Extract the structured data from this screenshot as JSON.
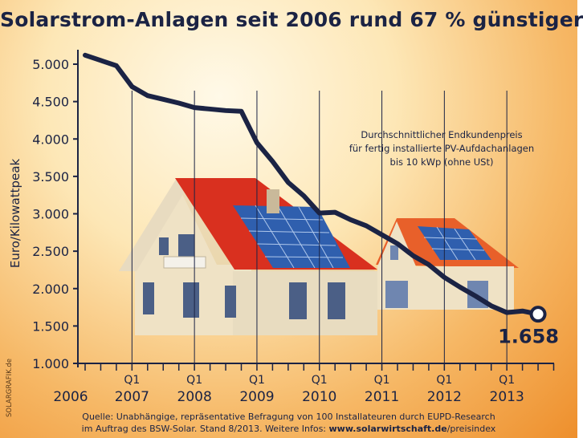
{
  "chart_data": {
    "type": "line",
    "title": "Solarstrom-Anlagen seit 2006 rund 67 % günstiger",
    "ylabel": "Euro/Kilowattpeak",
    "xlabel": "",
    "ylim": [
      1000,
      5000
    ],
    "y_ticks": [
      "5.000",
      "4.500",
      "4.000",
      "3.500",
      "3.000",
      "2.500",
      "2.000",
      "1.500",
      "1.000"
    ],
    "y_tick_values": [
      5000,
      4500,
      4000,
      3500,
      3000,
      2500,
      2000,
      1500,
      1000
    ],
    "x_labels": [
      {
        "q": "",
        "year": "2006"
      },
      {
        "q": "Q1",
        "year": "2007"
      },
      {
        "q": "Q1",
        "year": "2008"
      },
      {
        "q": "Q1",
        "year": "2009"
      },
      {
        "q": "Q1",
        "year": "2010"
      },
      {
        "q": "Q1",
        "year": "2011"
      },
      {
        "q": "Q1",
        "year": "2012"
      },
      {
        "q": "Q1",
        "year": "2013"
      }
    ],
    "series": [
      {
        "x": [
          "2006-Q2",
          "2006-Q3",
          "2006-Q4",
          "2007-Q1",
          "2007-Q2",
          "2007-Q3",
          "2007-Q4",
          "2008-Q1",
          "2008-Q2",
          "2008-Q3",
          "2008-Q4",
          "2009-Q1",
          "2009-Q2",
          "2009-Q3",
          "2009-Q4",
          "2010-Q1",
          "2010-Q2",
          "2010-Q3",
          "2010-Q4",
          "2011-Q1",
          "2011-Q2",
          "2011-Q3",
          "2011-Q4",
          "2012-Q1",
          "2012-Q2",
          "2012-Q3",
          "2012-Q4",
          "2013-Q1",
          "2013-Q2",
          "2013-Q3"
        ],
        "values": [
          5120,
          5050,
          4980,
          4700,
          4580,
          4530,
          4480,
          4420,
          4400,
          4380,
          4370,
          3950,
          3700,
          3420,
          3240,
          3010,
          3020,
          2920,
          2840,
          2720,
          2600,
          2440,
          2320,
          2150,
          2020,
          1900,
          1770,
          1680,
          1700,
          1658
        ]
      }
    ],
    "end_value_label": "1.658",
    "annotation": [
      "Durchschnittlicher Endkundenpreis",
      "für fertig installierte  PV-Aufdachanlagen",
      "bis 10 kWp (ohne USt)"
    ],
    "colors": {
      "line": "#1b2344",
      "background_center": "#fff9e8",
      "background_edge": "#ee8f2c"
    }
  },
  "source": {
    "line1": "Quelle: Unabhängige, repräsentative Befragung von 100 Installateuren durch EUPD-Research",
    "line2_prefix": "im Auftrag des BSW-Solar. Stand 8/2013.    Weitere Infos: ",
    "line2_link": "www.solarwirtschaft.de",
    "line2_suffix": "/preisindex"
  },
  "credit": "SOLARGRAFIK.de"
}
